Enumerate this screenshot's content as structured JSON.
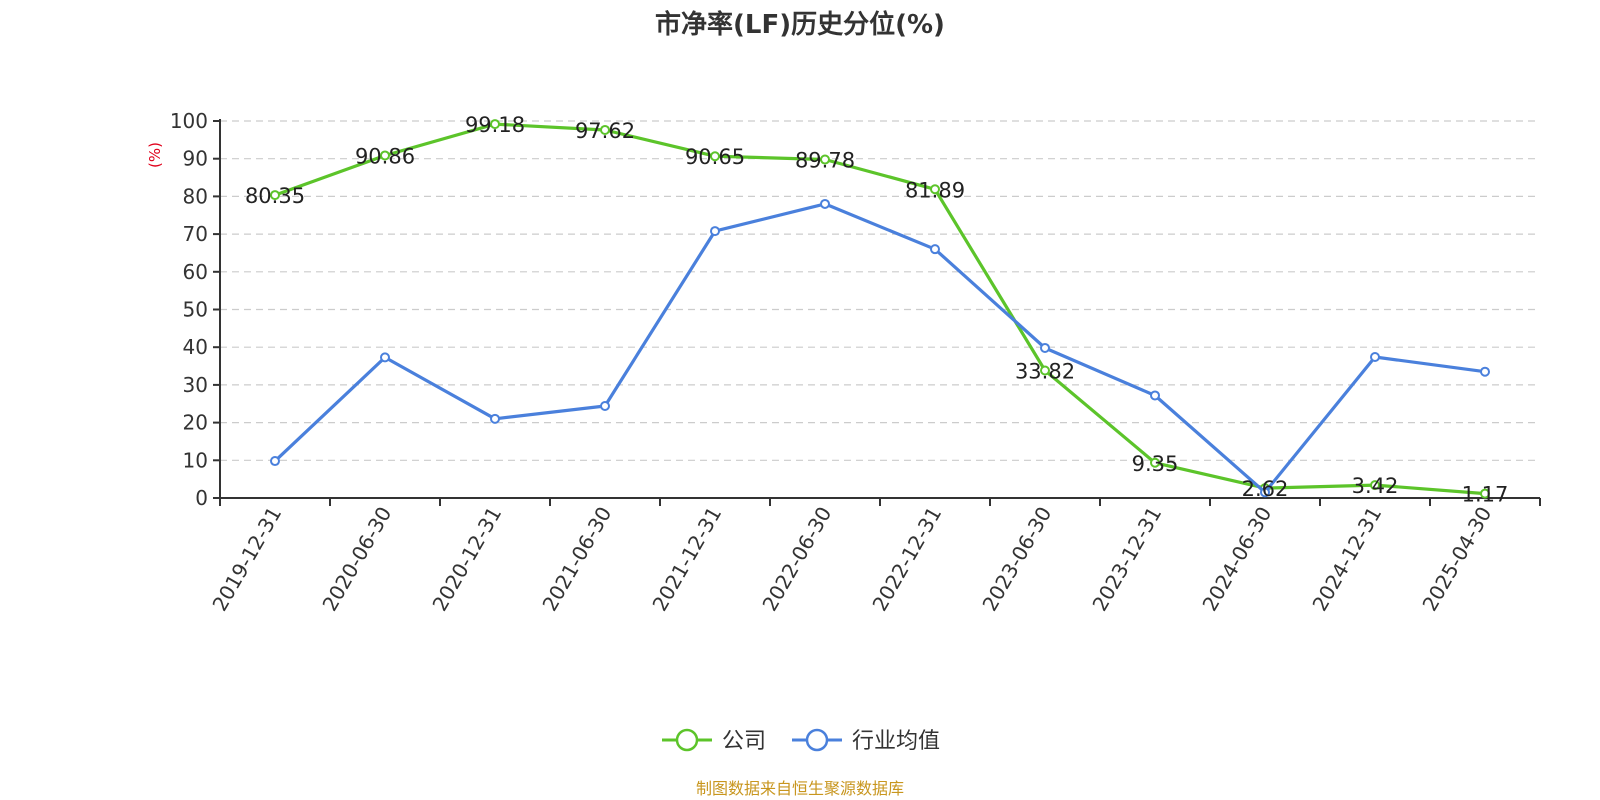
{
  "colors": {
    "company": "#5cc42a",
    "industry": "#4a80dc",
    "unit": "#e0001b",
    "source": "#c8961e"
  },
  "chart_data": {
    "type": "line",
    "title": "市净率(LF)历史分位(%)",
    "ylabel": "(%)",
    "ylim": [
      0,
      100
    ],
    "yticks": [
      "0",
      "10",
      "20",
      "30",
      "40",
      "50",
      "60",
      "70",
      "80",
      "90",
      "100"
    ],
    "grid": true,
    "legend_position": "bottom",
    "categories": [
      "2019-12-31",
      "2020-06-30",
      "2020-12-31",
      "2021-06-30",
      "2021-12-31",
      "2022-06-30",
      "2022-12-31",
      "2023-06-30",
      "2023-12-31",
      "2024-06-30",
      "2024-12-31",
      "2025-04-30"
    ],
    "series": [
      {
        "name": "公司",
        "values": [
          80.35,
          90.86,
          99.18,
          97.62,
          90.65,
          89.78,
          81.89,
          33.82,
          9.35,
          2.62,
          3.42,
          1.17
        ],
        "labels": [
          "80.35",
          "90.86",
          "99.18",
          "97.62",
          "90.65",
          "89.78",
          "81.89",
          "33.82",
          "9.35",
          "2.62",
          "3.42",
          "1.17"
        ]
      },
      {
        "name": "行业均值",
        "values": [
          9.8,
          37.3,
          21.0,
          24.4,
          70.8,
          78.0,
          66.0,
          39.8,
          27.2,
          1.5,
          37.4,
          33.5
        ]
      }
    ]
  },
  "footer": {
    "source": "制图数据来自恒生聚源数据库"
  }
}
